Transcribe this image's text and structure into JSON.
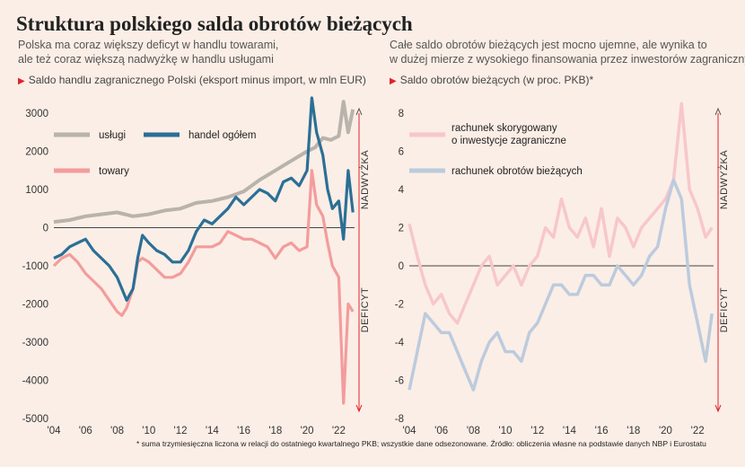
{
  "title": "Struktura polskiego salda obrotów bieżących",
  "left_subtitle": [
    "Polska ma coraz większy deficyt w handlu towarami,",
    "ale też coraz większą nadwyżkę w handlu usługami"
  ],
  "right_subtitle": [
    "Całe saldo obrotów bieżących jest mocno ujemne, ale wynika to",
    "w dużej mierze z wysokiego finansowania przez inwestorów zagranicznych"
  ],
  "footnote": "* suma trzymiesięczna liczona w relacji do ostatniego kwartalnego PKB; wszystkie dane odsezonowane. Źródło: obliczenia własne na podstawie danych NBP i Eurostatu",
  "colors": {
    "uslugi": "#b8b3ab",
    "handel": "#2b6f96",
    "towary": "#f39c9c",
    "skorygowany": "#f7c7cb",
    "rachunek": "#bccbdd",
    "marker": "#e0232c",
    "zero": "#444444"
  },
  "chart_data": [
    {
      "type": "line",
      "subtitle": "Saldo handlu zagranicznego Polski (eksport minus import, w mln EUR)",
      "x_tick_labels": [
        "'04",
        "'06",
        "'08",
        "'10",
        "'12",
        "'14",
        "'16",
        "'18",
        "'20",
        "'22"
      ],
      "y_tick_labels": [
        "3000",
        "2000",
        "1000",
        "0",
        "-1000",
        "-2000",
        "-3000",
        "-4000",
        "-5000"
      ],
      "xlim": [
        2004,
        2023
      ],
      "ylim": [
        -5000,
        3000
      ],
      "annotations": {
        "top": "NADWYŻKA",
        "bottom": "DEFICYT"
      },
      "grid": false,
      "legend_position": "top-left",
      "series": [
        {
          "name": "usługi",
          "x": [
            2004,
            2005,
            2006,
            2007,
            2008,
            2009,
            2010,
            2011,
            2012,
            2013,
            2014,
            2015,
            2016,
            2017,
            2018,
            2019,
            2020,
            2020.5,
            2021,
            2021.5,
            2022,
            2022.3,
            2022.6,
            2022.9
          ],
          "values": [
            150,
            200,
            300,
            350,
            400,
            300,
            350,
            450,
            500,
            650,
            700,
            800,
            950,
            1250,
            1500,
            1750,
            2000,
            2100,
            2350,
            2300,
            2400,
            3300,
            2500,
            3100
          ]
        },
        {
          "name": "handel ogółem",
          "x": [
            2004,
            2004.5,
            2005,
            2005.5,
            2006,
            2006.5,
            2007,
            2007.5,
            2008,
            2008.3,
            2008.6,
            2009,
            2009.3,
            2009.6,
            2010,
            2010.5,
            2011,
            2011.5,
            2012,
            2012.5,
            2013,
            2013.5,
            2014,
            2014.5,
            2015,
            2015.5,
            2016,
            2016.5,
            2017,
            2017.5,
            2018,
            2018.5,
            2019,
            2019.5,
            2020,
            2020.3,
            2020.6,
            2021,
            2021.3,
            2021.6,
            2022,
            2022.3,
            2022.6,
            2022.9
          ],
          "values": [
            -800,
            -700,
            -500,
            -400,
            -300,
            -600,
            -800,
            -1000,
            -1300,
            -1600,
            -1900,
            -1600,
            -800,
            -200,
            -400,
            -600,
            -700,
            -900,
            -900,
            -600,
            -100,
            200,
            100,
            300,
            500,
            800,
            600,
            800,
            1000,
            900,
            700,
            1200,
            1300,
            1100,
            1500,
            3400,
            2500,
            1900,
            1000,
            500,
            700,
            -300,
            1500,
            400
          ]
        },
        {
          "name": "towary",
          "x": [
            2004,
            2004.5,
            2005,
            2005.5,
            2006,
            2006.5,
            2007,
            2007.5,
            2008,
            2008.3,
            2008.6,
            2009,
            2009.3,
            2009.6,
            2010,
            2010.5,
            2011,
            2011.5,
            2012,
            2012.5,
            2013,
            2013.5,
            2014,
            2014.5,
            2015,
            2015.5,
            2016,
            2016.5,
            2017,
            2017.5,
            2018,
            2018.5,
            2019,
            2019.5,
            2020,
            2020.3,
            2020.6,
            2021,
            2021.3,
            2021.6,
            2022,
            2022.3,
            2022.6,
            2022.9
          ],
          "values": [
            -1000,
            -800,
            -700,
            -900,
            -1200,
            -1400,
            -1600,
            -1900,
            -2200,
            -2300,
            -2100,
            -1600,
            -900,
            -800,
            -900,
            -1100,
            -1300,
            -1300,
            -1200,
            -900,
            -500,
            -500,
            -500,
            -400,
            -100,
            -200,
            -300,
            -300,
            -400,
            -500,
            -800,
            -500,
            -400,
            -600,
            -500,
            1500,
            600,
            300,
            -400,
            -1000,
            -1300,
            -4600,
            -2000,
            -2200
          ]
        }
      ]
    },
    {
      "type": "line",
      "subtitle": "Saldo obrotów bieżących (w proc. PKB)*",
      "x_tick_labels": [
        "'04",
        "'06",
        "'08",
        "'10",
        "'12",
        "'14",
        "'16",
        "'18",
        "'20",
        "'22"
      ],
      "y_tick_labels": [
        "8",
        "6",
        "4",
        "2",
        "0",
        "-2",
        "-4",
        "-6",
        "-8"
      ],
      "xlim": [
        2004,
        2023
      ],
      "ylim": [
        -8,
        8
      ],
      "annotations": {
        "top": "NADWYŻKA",
        "bottom": "DEFICYT"
      },
      "grid": false,
      "legend_position": "top-left",
      "series": [
        {
          "name": "rachunek skorygowany o inwestycje zagraniczne",
          "x": [
            2004,
            2004.5,
            2005,
            2005.5,
            2006,
            2006.5,
            2007,
            2007.5,
            2008,
            2008.5,
            2009,
            2009.5,
            2010,
            2010.5,
            2011,
            2011.5,
            2012,
            2012.5,
            2013,
            2013.5,
            2014,
            2014.5,
            2015,
            2015.5,
            2016,
            2016.5,
            2017,
            2017.5,
            2018,
            2018.5,
            2019,
            2019.5,
            2020,
            2020.5,
            2021,
            2021.5,
            2022,
            2022.5,
            2022.9
          ],
          "values": [
            2.2,
            0.5,
            -1,
            -2,
            -1.5,
            -2.5,
            -3,
            -2,
            -1,
            0,
            0.5,
            -1,
            -0.5,
            0,
            -1,
            0,
            0.5,
            2,
            1.5,
            3.5,
            2,
            1.5,
            2.5,
            1,
            3,
            0.5,
            2.5,
            2,
            1,
            2,
            2.5,
            3,
            3.5,
            4.5,
            8.5,
            4,
            3,
            1.5,
            2
          ]
        },
        {
          "name": "rachunek obrotów bieżących",
          "x": [
            2004,
            2004.5,
            2005,
            2005.5,
            2006,
            2006.5,
            2007,
            2007.5,
            2008,
            2008.5,
            2009,
            2009.5,
            2010,
            2010.5,
            2011,
            2011.5,
            2012,
            2012.5,
            2013,
            2013.5,
            2014,
            2014.5,
            2015,
            2015.5,
            2016,
            2016.5,
            2017,
            2017.5,
            2018,
            2018.5,
            2019,
            2019.5,
            2020,
            2020.5,
            2021,
            2021.5,
            2022,
            2022.5,
            2022.9
          ],
          "values": [
            -6.5,
            -4.5,
            -2.5,
            -3,
            -3.5,
            -3.5,
            -4.5,
            -5.5,
            -6.5,
            -5,
            -4,
            -3.5,
            -4.5,
            -4.5,
            -5,
            -3.5,
            -3,
            -2,
            -1,
            -1,
            -1.5,
            -1.5,
            -0.5,
            -0.5,
            -1,
            -1,
            0,
            -0.5,
            -1,
            -0.5,
            0.5,
            1,
            3,
            4.5,
            3.5,
            -1,
            -3,
            -5,
            -2.5
          ]
        }
      ]
    }
  ]
}
